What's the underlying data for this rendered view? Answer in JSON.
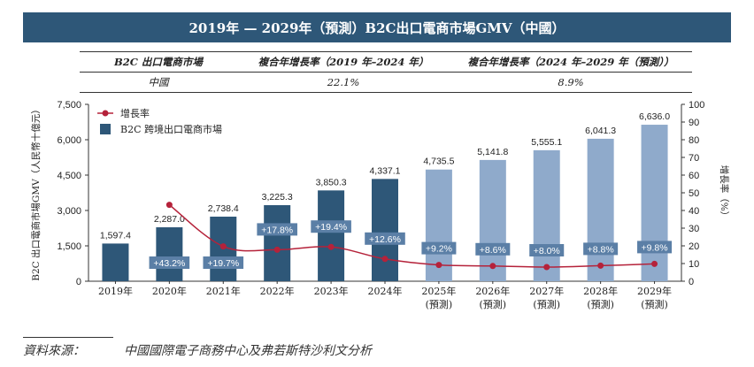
{
  "title": "2019年 — 2029年（預測）B2C出口電商市場GMV（中國）",
  "cagr_table": {
    "headers": [
      "B2C 出口電商市場",
      "複合年增長率（2019 年–2024 年）",
      "複合年增長率（2024 年–2029 年（預測））"
    ],
    "rows": [
      [
        "中國",
        "22.1%",
        "8.9%"
      ]
    ]
  },
  "chart_data": {
    "type": "bar",
    "categories": [
      "2019年",
      "2020年",
      "2021年",
      "2022年",
      "2023年",
      "2024年",
      "2025年",
      "2026年",
      "2027年",
      "2028年",
      "2029年"
    ],
    "category_sublabels": [
      "",
      "",
      "",
      "",
      "",
      "",
      "(預測)",
      "(預測)",
      "(預測)",
      "(預測)",
      "(預測)"
    ],
    "series": [
      {
        "name": "B2C 跨境出口電商市場",
        "type": "bar",
        "axis": "left",
        "values": [
          1597.4,
          2287.0,
          2738.4,
          3225.3,
          3850.3,
          4337.1,
          4735.5,
          5141.8,
          5555.1,
          6041.3,
          6636.0
        ],
        "value_labels": [
          "1,597.4",
          "2,287.0",
          "2,738.4",
          "3,225.3",
          "3,850.3",
          "4,337.1",
          "4,735.5",
          "5,141.8",
          "5,555.1",
          "6,041.3",
          "6,636.0"
        ]
      },
      {
        "name": "增長率",
        "type": "line",
        "axis": "right",
        "values": [
          null,
          43.2,
          19.7,
          17.8,
          19.4,
          12.6,
          9.2,
          8.6,
          8.0,
          8.8,
          9.8
        ],
        "value_labels": [
          "",
          "+43.2%",
          "+19.7%",
          "+17.8%",
          "+19.4%",
          "+12.6%",
          "+9.2%",
          "+8.6%",
          "+8.0%",
          "+8.8%",
          "+9.8%"
        ]
      }
    ],
    "ylabel": "B2C 出口電商市場GMV（人民幣十億元）",
    "y2label": "增長率（%）",
    "ylim": [
      0,
      7500
    ],
    "yticks": [
      "0",
      "1,500",
      "3,000",
      "4,500",
      "6,000",
      "7,500"
    ],
    "y2lim": [
      0,
      100
    ],
    "y2ticks": [
      "0",
      "10",
      "20",
      "30",
      "40",
      "50",
      "60",
      "70",
      "80",
      "90",
      "100"
    ],
    "legend_position": "top-left",
    "colors": {
      "bar_actual": "#2e5778",
      "bar_forecast": "#8faacb",
      "line": "#b5223a",
      "label_box": "#5b7fa6"
    }
  },
  "source": {
    "label": "資料來源：",
    "text": "中國國際電子商務中心及弗若斯特沙利文分析"
  }
}
